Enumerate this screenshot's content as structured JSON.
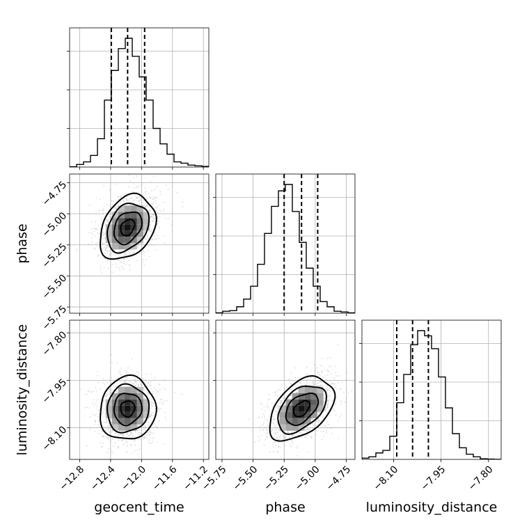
{
  "chart_data": {
    "type": "corner",
    "title": "",
    "parameters": [
      {
        "name": "geocent_time",
        "label": "geocent_time",
        "range": [
          -12.93,
          -11.13
        ],
        "ticks": [
          -12.8,
          -12.4,
          -12.0,
          -11.6,
          -11.2
        ],
        "tick_labels": [
          "−12.8",
          "−12.4",
          "−12.0",
          "−11.6",
          "−11.2"
        ],
        "median": -12.18,
        "quantiles": [
          -12.39,
          -11.96
        ],
        "hist_counts": [
          0.2,
          2,
          4,
          9,
          22,
          52,
          75,
          92,
          100,
          86,
          70,
          52,
          30,
          18,
          10,
          4,
          3,
          1.5,
          1,
          0.5
        ]
      },
      {
        "name": "phase",
        "label": "phase",
        "range": [
          -5.8,
          -4.68
        ],
        "ticks": [
          -5.75,
          -5.5,
          -5.25,
          -5.0,
          -4.75
        ],
        "tick_labels": [
          "−5.75",
          "−5.50",
          "−5.25",
          "−5.00",
          "−4.75"
        ],
        "median": -5.11,
        "quantiles": [
          -5.25,
          -4.98
        ],
        "hist_counts": [
          0.3,
          1.5,
          2,
          5,
          11,
          21,
          38,
          62,
          83,
          95,
          100,
          79,
          55,
          35,
          21,
          9,
          5,
          1.5,
          1,
          0.3
        ]
      },
      {
        "name": "luminosity_distance",
        "label": "luminosity_distance",
        "range": [
          -8.2,
          -7.76
        ],
        "ticks": [
          -8.1,
          -7.95,
          -7.8
        ],
        "tick_labels": [
          "−8.10",
          "−7.95",
          "−7.80"
        ],
        "median": -8.04,
        "quantiles": [
          -8.09,
          -7.99
        ],
        "hist_counts": [
          1,
          2,
          5,
          7,
          18,
          44,
          66,
          89,
          100,
          96,
          86,
          64,
          40,
          20,
          9,
          4,
          2,
          0.5,
          0.2,
          0.1
        ]
      }
    ],
    "pairs": [
      {
        "x_param": "geocent_time",
        "y_param": "phase",
        "mean": [
          -12.18,
          -5.11
        ],
        "sigma": [
          0.18,
          0.13
        ],
        "rho": 0.3
      },
      {
        "x_param": "geocent_time",
        "y_param": "luminosity_distance",
        "mean": [
          -12.18,
          -8.04
        ],
        "sigma": [
          0.18,
          0.05
        ],
        "rho": 0.05
      },
      {
        "x_param": "phase",
        "y_param": "luminosity_distance",
        "mean": [
          -5.11,
          -8.04
        ],
        "sigma": [
          0.13,
          0.05
        ],
        "rho": 0.45
      }
    ],
    "contour_levels": [
      0.5,
      1.0,
      1.5,
      2.0
    ],
    "grid": true,
    "colors": {
      "hist": "#000000",
      "contour": "#000000",
      "scatter": "#bfbfbf",
      "density": "#000000"
    }
  }
}
